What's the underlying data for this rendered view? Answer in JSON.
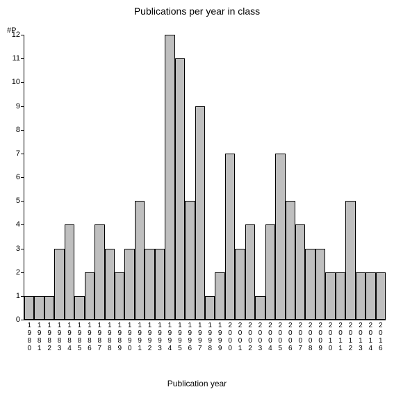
{
  "chart": {
    "type": "bar",
    "title": "Publications per year in class",
    "title_fontsize": 14,
    "ylabel": "#P",
    "xlabel": "Publication year",
    "label_fontsize": 12,
    "tick_fontsize": 11,
    "background_color": "#ffffff",
    "bar_color": "#bfbfbf",
    "bar_border_color": "#000000",
    "axis_color": "#000000",
    "ylim": [
      0,
      12
    ],
    "ytick_step": 1,
    "bar_width": 1.0,
    "categories": [
      "1980",
      "1981",
      "1982",
      "1983",
      "1984",
      "1985",
      "1986",
      "1987",
      "1988",
      "1989",
      "1990",
      "1991",
      "1992",
      "1993",
      "1994",
      "1995",
      "1996",
      "1997",
      "1998",
      "1999",
      "2000",
      "2001",
      "2002",
      "2003",
      "2004",
      "2005",
      "2006",
      "2007",
      "2008",
      "2009",
      "2010",
      "2011",
      "2012",
      "2013",
      "2014",
      "2016"
    ],
    "values": [
      1,
      1,
      1,
      3,
      4,
      1,
      2,
      4,
      3,
      2,
      3,
      5,
      3,
      3,
      12,
      11,
      5,
      9,
      1,
      2,
      7,
      3,
      4,
      1,
      4,
      7,
      5,
      4,
      3,
      3,
      2,
      2,
      5,
      2,
      2,
      2
    ]
  }
}
